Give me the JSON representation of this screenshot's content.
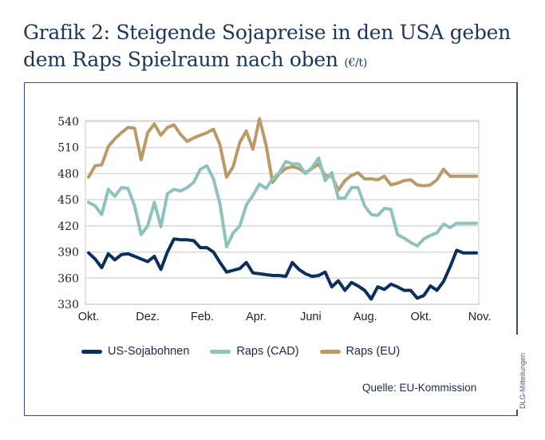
{
  "title": {
    "line1": "Grafik 2: Steigende Sojapreise in den USA geben",
    "line2": "dem Raps Spielraum nach oben",
    "unit": "(€/t)"
  },
  "source": "Quelle: EU-Kommission",
  "side_credit": "DLG-Mitteilungen",
  "chart_data": {
    "type": "line",
    "title": "Grafik 2: Steigende Sojapreise in den USA geben dem Raps Spielraum nach oben (€/t)",
    "xlabel": "",
    "ylabel": "€/t",
    "ylim": [
      330,
      540
    ],
    "yticks": [
      330,
      360,
      390,
      420,
      450,
      480,
      510,
      540
    ],
    "xtick_labels": [
      "Okt.",
      "Dez.",
      "Feb.",
      "Apr.",
      "Juni",
      "Aug.",
      "Okt.",
      "Nov."
    ],
    "xtick_positions": [
      0,
      9,
      17.3,
      25.5,
      33.8,
      42.1,
      50.6,
      59.5
    ],
    "grid": "horizontal",
    "legend": "bottom",
    "x": [
      0,
      1,
      2,
      3,
      4,
      5,
      6,
      7,
      8,
      9,
      10,
      11,
      12,
      13,
      14,
      15,
      16,
      17,
      18,
      19,
      20,
      21,
      22,
      23,
      24,
      25,
      26,
      27,
      28,
      29,
      30,
      31,
      32,
      33,
      34,
      35,
      36,
      37,
      38,
      39,
      40,
      41,
      42,
      43,
      44,
      45,
      46,
      47,
      48,
      49,
      50,
      51,
      52,
      53,
      54,
      55,
      56,
      57,
      58,
      59
    ],
    "series": [
      {
        "name": "US-Sojabohnen",
        "color": "#0d2f5e",
        "values": [
          389,
          382,
          372,
          388,
          381,
          387,
          388,
          385,
          382,
          379,
          385,
          370,
          390,
          405,
          404,
          404,
          403,
          395,
          395,
          390,
          378,
          367,
          369,
          371,
          378,
          366,
          365,
          364,
          363,
          363,
          362,
          378,
          370,
          365,
          362,
          363,
          367,
          350,
          357,
          346,
          355,
          351,
          346,
          336,
          350,
          347,
          353,
          350,
          346,
          346,
          337,
          340,
          351,
          346,
          356,
          373,
          392,
          389,
          389,
          389
        ]
      },
      {
        "name": "Raps (CAD)",
        "color": "#8fc2bd",
        "values": [
          447,
          443,
          433,
          462,
          454,
          464,
          463,
          443,
          410,
          420,
          447,
          419,
          457,
          462,
          460,
          464,
          470,
          485,
          489,
          474,
          445,
          396,
          412,
          420,
          444,
          455,
          468,
          463,
          474,
          481,
          494,
          491,
          491,
          480,
          487,
          498,
          472,
          481,
          452,
          452,
          464,
          464,
          443,
          433,
          432,
          440,
          439,
          410,
          406,
          401,
          397,
          405,
          409,
          412,
          422,
          418,
          423,
          423,
          423,
          423
        ]
      },
      {
        "name": "Raps (EU)",
        "color": "#b99a68",
        "values": [
          476,
          489,
          490,
          511,
          520,
          527,
          533,
          532,
          496,
          527,
          537,
          524,
          533,
          536,
          525,
          517,
          521,
          524,
          527,
          531,
          513,
          476,
          488,
          516,
          529,
          508,
          543,
          513,
          470,
          480,
          486,
          488,
          486,
          481,
          486,
          491,
          478,
          477,
          461,
          472,
          478,
          481,
          474,
          474,
          473,
          477,
          467,
          469,
          472,
          473,
          467,
          466,
          467,
          473,
          485,
          477,
          477,
          477,
          477,
          477
        ]
      }
    ]
  }
}
